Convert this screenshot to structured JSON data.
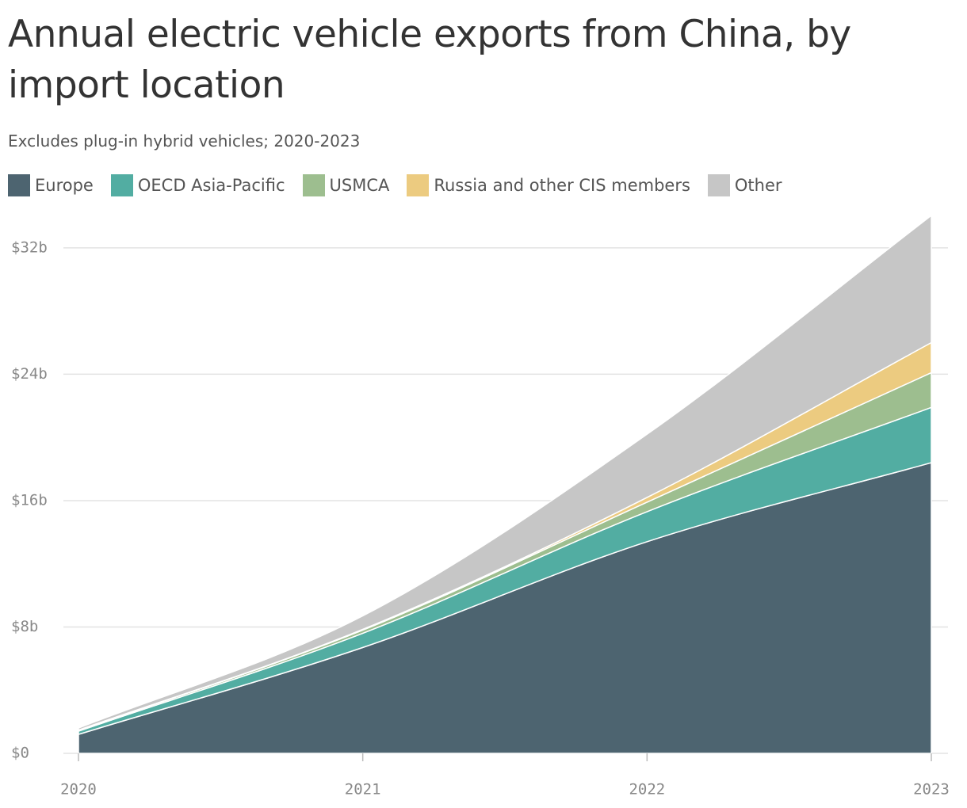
{
  "chart_data": {
    "type": "stacked-area",
    "title": "Annual electric vehicle exports from China, by import location",
    "subtitle": "Excludes plug-in hybrid vehicles; 2020-2023",
    "x": [
      2020,
      2021,
      2022,
      2023
    ],
    "xlim": [
      2020,
      2023
    ],
    "xticks": [
      2020,
      2021,
      2022,
      2023
    ],
    "ylim": [
      0,
      34.05
    ],
    "yticks": [
      {
        "value": 0,
        "label": "$0"
      },
      {
        "value": 8,
        "label": "$8b"
      },
      {
        "value": 16,
        "label": "$16b"
      },
      {
        "value": 24,
        "label": "$24b"
      },
      {
        "value": 32,
        "label": "$32b"
      }
    ],
    "grid": true,
    "series": [
      {
        "name": "Europe",
        "color": "#4d6470",
        "values": [
          1.2,
          6.7,
          13.4,
          18.4
        ]
      },
      {
        "name": "OECD Asia-Pacific",
        "color": "#52ada2",
        "values": [
          0.2,
          0.9,
          1.9,
          3.5
        ]
      },
      {
        "name": "USMCA",
        "color": "#9dbe8f",
        "values": [
          0.05,
          0.2,
          0.6,
          2.2
        ]
      },
      {
        "name": "Russia and other CIS members",
        "color": "#eccb80",
        "values": [
          0.02,
          0.05,
          0.3,
          1.9
        ]
      },
      {
        "name": "Other",
        "color": "#c6c6c6",
        "values": [
          0.13,
          0.85,
          4.0,
          8.05
        ]
      }
    ]
  }
}
